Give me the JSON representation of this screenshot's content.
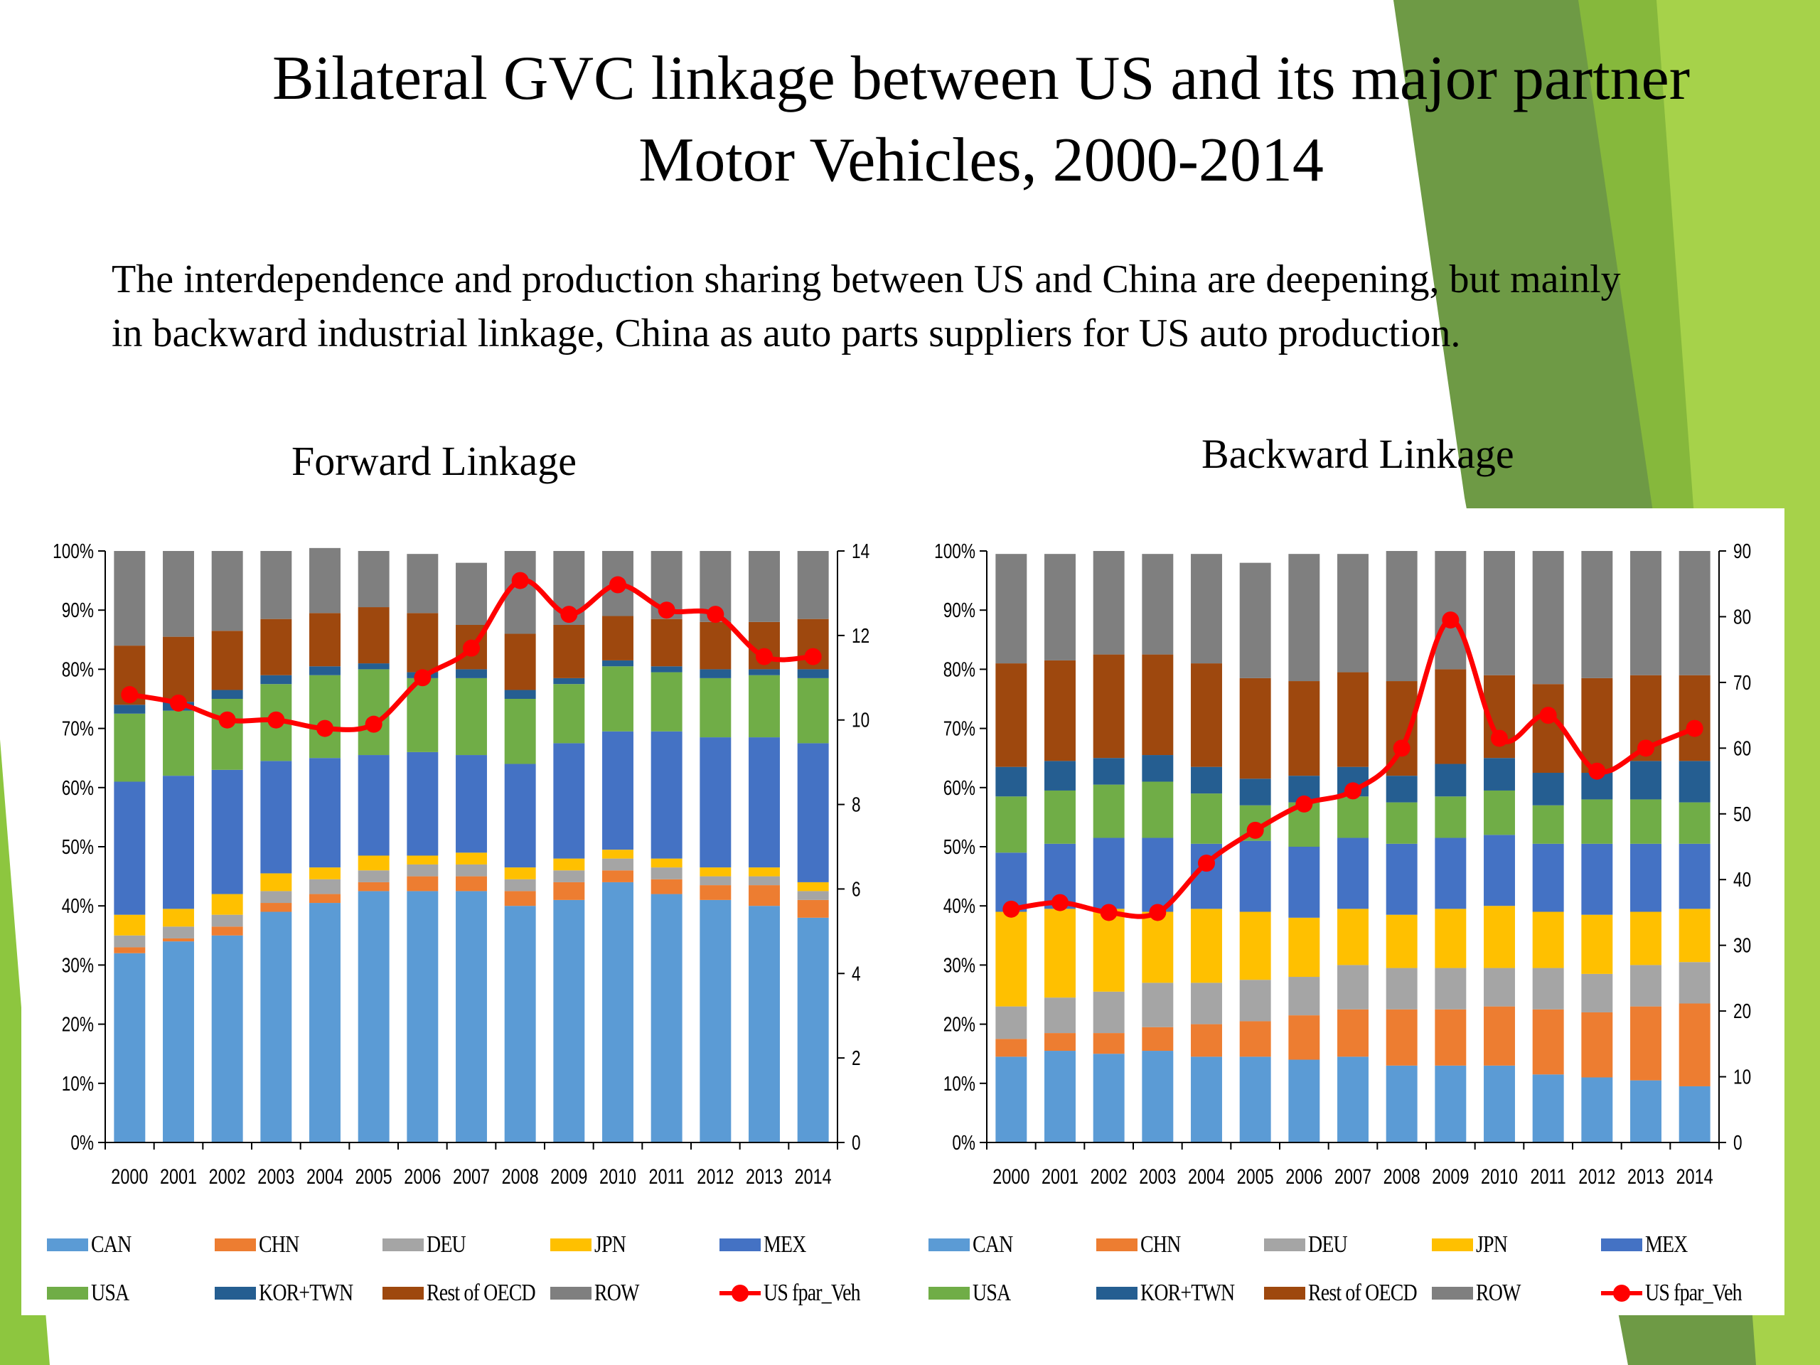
{
  "slide": {
    "title_line1": "Bilateral GVC linkage between US and its major partner",
    "title_line2": "Motor Vehicles, 2000-2014",
    "description": "The interdependence and production sharing between US and China are deepening, but mainly in backward industrial linkage, China as auto parts suppliers for US auto production.",
    "forward_subtitle": "Forward Linkage",
    "backward_subtitle": "Backward Linkage",
    "colors": {
      "bg_green_dark": "#6e9a45",
      "bg_green": "#86b83c",
      "bg_green_light": "#a6d24a"
    }
  },
  "chart_data": [
    {
      "id": "forward",
      "type": "bar",
      "stacked": true,
      "title": "Forward Linkage",
      "categories": [
        "2000",
        "2001",
        "2002",
        "2003",
        "2004",
        "2005",
        "2006",
        "2007",
        "2008",
        "2009",
        "2010",
        "2011",
        "2012",
        "2013",
        "2014"
      ],
      "y_left": {
        "min": 0,
        "max": 100,
        "ticks": [
          "0%",
          "10%",
          "20%",
          "30%",
          "40%",
          "50%",
          "60%",
          "70%",
          "80%",
          "90%",
          "100%"
        ]
      },
      "y_right": {
        "min": 0,
        "max": 14,
        "ticks": [
          "0",
          "2",
          "4",
          "6",
          "8",
          "10",
          "12",
          "14"
        ]
      },
      "grid": false,
      "legend_position": "bottom",
      "series": [
        {
          "name": "CAN",
          "color": "#5b9bd5",
          "values": [
            32,
            34,
            35,
            39,
            40.5,
            42.5,
            42.5,
            42.5,
            40,
            41,
            44,
            42,
            41,
            40,
            38
          ]
        },
        {
          "name": "CHN",
          "color": "#ed7d31",
          "values": [
            1,
            0.5,
            1.5,
            1.5,
            1.5,
            1.5,
            2.5,
            2.5,
            2.5,
            3,
            2,
            2.5,
            2.5,
            3.5,
            3
          ]
        },
        {
          "name": "DEU",
          "color": "#a5a5a5",
          "values": [
            2,
            2,
            2,
            2,
            2.5,
            2,
            2,
            2,
            2,
            2,
            2,
            2,
            1.5,
            1.5,
            1.5
          ]
        },
        {
          "name": "JPN",
          "color": "#ffc000",
          "values": [
            3.5,
            3,
            3.5,
            3,
            2,
            2.5,
            1.5,
            2,
            2,
            2,
            1.5,
            1.5,
            1.5,
            1.5,
            1.5
          ]
        },
        {
          "name": "MEX",
          "color": "#4472c4",
          "values": [
            22.5,
            22.5,
            21,
            19,
            18.5,
            17,
            17.5,
            16.5,
            17.5,
            19.5,
            20,
            21.5,
            22,
            22,
            23.5
          ]
        },
        {
          "name": "USA",
          "color": "#70ad47",
          "values": [
            11.5,
            11,
            12,
            13,
            14,
            14.5,
            12.5,
            13,
            11,
            10,
            11,
            10,
            10,
            10.5,
            11
          ]
        },
        {
          "name": "KOR+TWN",
          "color": "#255e91",
          "values": [
            1.5,
            1.5,
            1.5,
            1.5,
            1.5,
            1,
            1,
            1.5,
            1.5,
            1,
            1,
            1,
            1.5,
            1,
            1.5
          ]
        },
        {
          "name": "Rest of OECD",
          "color": "#9e480e",
          "values": [
            10,
            11,
            10,
            9.5,
            9,
            9.5,
            10,
            7.5,
            9.5,
            9,
            7.5,
            8,
            8,
            8,
            8.5
          ]
        },
        {
          "name": "ROW",
          "color": "#7f7f7f",
          "values": [
            16,
            14.5,
            13.5,
            11.5,
            11,
            9.5,
            10,
            10.5,
            14,
            12.5,
            11,
            11.5,
            12,
            12,
            11.5
          ]
        }
      ],
      "line_series": {
        "name": "US fpar_Veh",
        "color": "#ff0000",
        "axis": "right",
        "values": [
          10.6,
          10.4,
          10.0,
          10.0,
          9.8,
          9.9,
          11.0,
          11.7,
          13.3,
          12.5,
          13.2,
          12.6,
          12.5,
          11.5,
          11.5
        ]
      }
    },
    {
      "id": "backward",
      "type": "bar",
      "stacked": true,
      "title": "Backward Linkage",
      "categories": [
        "2000",
        "2001",
        "2002",
        "2003",
        "2004",
        "2005",
        "2006",
        "2007",
        "2008",
        "2009",
        "2010",
        "2011",
        "2012",
        "2013",
        "2014"
      ],
      "y_left": {
        "min": 0,
        "max": 100,
        "ticks": [
          "0%",
          "10%",
          "20%",
          "30%",
          "40%",
          "50%",
          "60%",
          "70%",
          "80%",
          "90%",
          "100%"
        ]
      },
      "y_right": {
        "min": 0,
        "max": 90,
        "ticks": [
          "0",
          "10",
          "20",
          "30",
          "40",
          "50",
          "60",
          "70",
          "80",
          "90"
        ]
      },
      "grid": false,
      "legend_position": "bottom",
      "series": [
        {
          "name": "CAN",
          "color": "#5b9bd5",
          "values": [
            14.5,
            15.5,
            15,
            15.5,
            14.5,
            14.5,
            14,
            14.5,
            13,
            13,
            13,
            11.5,
            11,
            10.5,
            9.5
          ]
        },
        {
          "name": "CHN",
          "color": "#ed7d31",
          "values": [
            3,
            3,
            3.5,
            4,
            5.5,
            6,
            7.5,
            8,
            9.5,
            9.5,
            10,
            11,
            11,
            12.5,
            14
          ]
        },
        {
          "name": "DEU",
          "color": "#a5a5a5",
          "values": [
            5.5,
            6,
            7,
            7.5,
            7,
            7,
            6.5,
            7.5,
            7,
            7,
            6.5,
            7,
            6.5,
            7,
            7
          ]
        },
        {
          "name": "JPN",
          "color": "#ffc000",
          "values": [
            16,
            15,
            14,
            12,
            12.5,
            11.5,
            10,
            9.5,
            9,
            10,
            10.5,
            9.5,
            10,
            9,
            9
          ]
        },
        {
          "name": "MEX",
          "color": "#4472c4",
          "values": [
            10,
            11,
            12,
            12.5,
            11,
            12,
            12,
            12,
            12,
            12,
            12,
            11.5,
            12,
            11.5,
            11
          ]
        },
        {
          "name": "USA",
          "color": "#70ad47",
          "values": [
            9.5,
            9,
            9,
            9.5,
            8.5,
            6,
            7.5,
            7,
            7,
            7,
            7.5,
            6.5,
            7.5,
            7.5,
            7
          ]
        },
        {
          "name": "KOR+TWN",
          "color": "#255e91",
          "values": [
            5,
            5,
            4.5,
            4.5,
            4.5,
            4.5,
            4.5,
            5,
            4.5,
            5.5,
            5.5,
            5.5,
            4.5,
            6.5,
            7
          ]
        },
        {
          "name": "Rest of OECD",
          "color": "#9e480e",
          "values": [
            17.5,
            17,
            17.5,
            17,
            17.5,
            17,
            16,
            16,
            16,
            16,
            14,
            15,
            16,
            14.5,
            14.5
          ]
        },
        {
          "name": "ROW",
          "color": "#7f7f7f",
          "values": [
            18.5,
            18,
            17.5,
            17,
            18.5,
            19.5,
            21.5,
            20,
            22,
            20,
            21,
            22.5,
            21.5,
            21,
            21
          ]
        }
      ],
      "line_series": {
        "name": "US fpar_Veh",
        "color": "#ff0000",
        "axis": "right",
        "values": [
          35.5,
          36.5,
          35,
          35,
          42.5,
          47.5,
          51.5,
          53.5,
          60,
          79.5,
          61.5,
          65,
          56.5,
          60,
          63
        ]
      }
    }
  ]
}
